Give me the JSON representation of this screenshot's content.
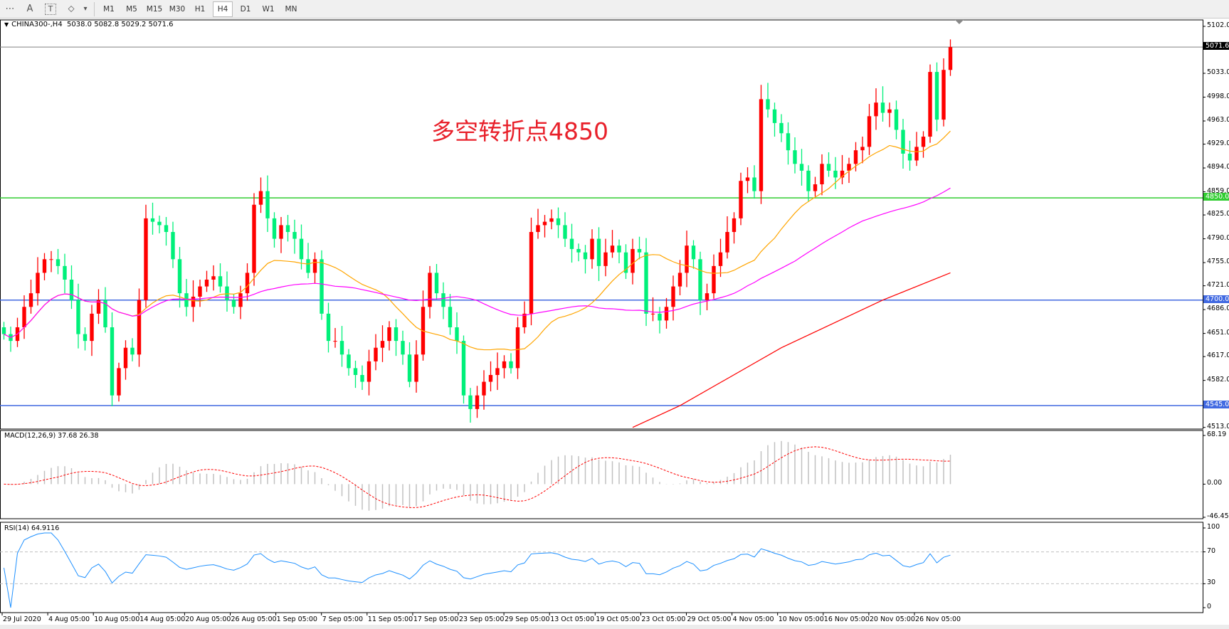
{
  "toolbar": {
    "tools": [
      {
        "name": "fibo-icon",
        "glyph": "⋯"
      },
      {
        "name": "text-icon",
        "glyph": "A"
      },
      {
        "name": "text-label-icon",
        "glyph": "T"
      },
      {
        "name": "shapes-icon",
        "glyph": "⬦"
      }
    ],
    "dropdown_glyph": "▾",
    "timeframes": [
      "M1",
      "M5",
      "M15",
      "M30",
      "H1",
      "H4",
      "D1",
      "W1",
      "MN"
    ],
    "active_timeframe": "H4"
  },
  "header": {
    "symbol": "CHINA300-,H4",
    "ohlc_text": "5038.0 5082.8 5029.2 5071.6"
  },
  "annotation": {
    "text": "多空转折点4850",
    "color": "#e8202a"
  },
  "chart_data": {
    "type": "candlestick",
    "symbol": "CHINA300-",
    "timeframe": "H4",
    "last_bar": {
      "open": 5038.0,
      "high": 5082.8,
      "low": 5029.2,
      "close": 5071.6
    },
    "closes": [
      4650,
      4640,
      4660,
      4690,
      4710,
      4740,
      4760,
      4760,
      4750,
      4730,
      4700,
      4650,
      4640,
      4680,
      4700,
      4660,
      4560,
      4600,
      4630,
      4620,
      4700,
      4820,
      4815,
      4810,
      4800,
      4760,
      4710,
      4690,
      4705,
      4720,
      4730,
      4735,
      4720,
      4700,
      4690,
      4710,
      4740,
      4840,
      4860,
      4820,
      4790,
      4810,
      4800,
      4790,
      4760,
      4740,
      4760,
      4680,
      4640,
      4640,
      4620,
      4600,
      4590,
      4580,
      4610,
      4630,
      4640,
      4660,
      4640,
      4620,
      4580,
      4620,
      4690,
      4740,
      4710,
      4690,
      4660,
      4640,
      4560,
      4540,
      4560,
      4580,
      4590,
      4600,
      4610,
      4600,
      4660,
      4680,
      4800,
      4810,
      4815,
      4820,
      4810,
      4790,
      4775,
      4770,
      4760,
      4790,
      4750,
      4770,
      4780,
      4770,
      4740,
      4775,
      4770,
      4680,
      4680,
      4670,
      4690,
      4720,
      4740,
      4780,
      4760,
      4700,
      4710,
      4750,
      4770,
      4800,
      4820,
      4875,
      4880,
      4860,
      4995,
      4980,
      4960,
      4945,
      4920,
      4900,
      4890,
      4860,
      4870,
      4900,
      4890,
      4880,
      4890,
      4900,
      4920,
      4925,
      4970,
      4990,
      4975,
      4980,
      4950,
      4915,
      4905,
      4925,
      4940,
      5035,
      4965,
      5038,
      5071.6
    ],
    "up_color": "#ff0000",
    "down_color": "#00f07a",
    "price_axis": {
      "ticks": [
        "5102.0",
        "5033.0",
        "4998.0",
        "4963.0",
        "4929.0",
        "4894.0",
        "4859.0",
        "4825.0",
        "4790.0",
        "4755.0",
        "4721.0",
        "4686.0",
        "4651.0",
        "4617.0",
        "4582.0",
        "4513.0"
      ],
      "range": [
        4513,
        5102
      ]
    },
    "horizontal_lines": [
      {
        "price": 4850.0,
        "label": "4850.0",
        "color": "#32cd32"
      },
      {
        "price": 4700.0,
        "label": "4700.0",
        "color": "#4169e1"
      },
      {
        "price": 4545.0,
        "label": "4545.0",
        "color": "#4169e1"
      }
    ],
    "current_price": {
      "price": 5071.6,
      "label": "5071.6",
      "color": "#000000"
    },
    "moving_averages": [
      {
        "color": "#ffa500",
        "period": 20
      },
      {
        "color": "#ff00ff",
        "period": 50
      },
      {
        "color": "#ff0000",
        "points": [
          [
            93,
            4513
          ],
          [
            100,
            4545
          ],
          [
            115,
            4630
          ],
          [
            130,
            4700
          ],
          [
            140,
            4740
          ]
        ]
      }
    ],
    "time_axis": [
      "29 Jul 2020",
      "4 Aug 05:00",
      "10 Aug 05:00",
      "14 Aug 05:00",
      "20 Aug 05:00",
      "26 Aug 05:00",
      "1 Sep 05:00",
      "7 Sep 05:00",
      "11 Sep 05:00",
      "17 Sep 05:00",
      "23 Sep 05:00",
      "29 Sep 05:00",
      "13 Oct 05:00",
      "19 Oct 05:00",
      "23 Oct 05:00",
      "29 Oct 05:00",
      "4 Nov 05:00",
      "10 Nov 05:00",
      "16 Nov 05:00",
      "20 Nov 05:00",
      "26 Nov 05:00"
    ],
    "macd": {
      "label": "MACD(12,26,9) 37.68 26.38",
      "ticks": [
        "68.19",
        "0.00",
        "-46.45"
      ],
      "range": [
        -46.45,
        68.19
      ],
      "hist_color": "#c0c0c0",
      "signal_color": "#ff0000"
    },
    "rsi": {
      "label": "RSI(14) 64.9116",
      "ticks": [
        "100",
        "70",
        "30",
        "0"
      ],
      "levels": [
        70,
        30
      ],
      "range": [
        0,
        100
      ],
      "color": "#1e90ff"
    }
  }
}
